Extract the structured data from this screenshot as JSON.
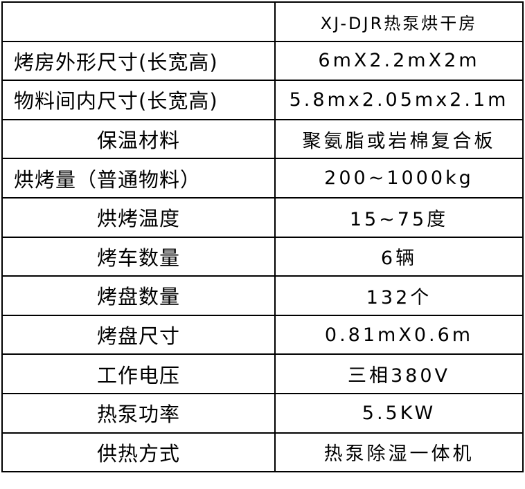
{
  "header": {
    "label": "",
    "value": "XJ-DJR热泵烘干房"
  },
  "rows": [
    {
      "label": "烤房外形尺寸(长宽高)",
      "value": "6mX2.2mX2m"
    },
    {
      "label": "物料间内尺寸(长宽高)",
      "value": "5.8mx2.05mx2.1m"
    },
    {
      "label": "保温材料",
      "value": "聚氨脂或岩棉复合板"
    },
    {
      "label": "烘烤量（普通物料）",
      "value": "200~1000kg"
    },
    {
      "label": "烘烤温度",
      "value": "15~75度"
    },
    {
      "label": "烤车数量",
      "value": "6辆"
    },
    {
      "label": "烤盘数量",
      "value": "132个"
    },
    {
      "label": "烤盘尺寸",
      "value": "0.81mX0.6m"
    },
    {
      "label": "工作电压",
      "value": "三相380V"
    },
    {
      "label": "热泵功率",
      "value": "5.5KW"
    },
    {
      "label": "供热方式",
      "value": "热泵除湿一体机"
    }
  ]
}
